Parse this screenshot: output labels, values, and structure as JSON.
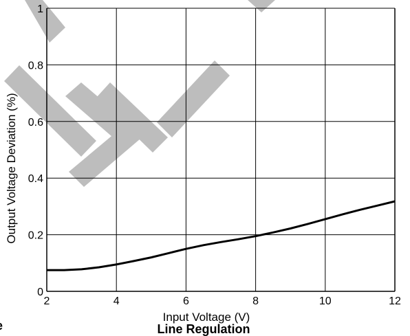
{
  "chart_data": {
    "type": "line",
    "title": "Line Regulation",
    "side_fragment": "e",
    "xlabel": "Input Voltage (V)",
    "ylabel": "Output Voltage Deviation (%)",
    "xlim": [
      2,
      12
    ],
    "ylim": [
      0,
      1
    ],
    "x_ticks": [
      2,
      4,
      6,
      8,
      10,
      12
    ],
    "y_ticks": [
      0,
      0.2,
      0.4,
      0.6,
      0.8,
      1
    ],
    "y_tick_labels": [
      "0",
      "0.2",
      "0.4",
      "0.6",
      "0.8",
      "1"
    ],
    "grid": true,
    "series": [
      {
        "x": [
          2,
          2.5,
          3,
          3.5,
          4,
          4.5,
          5,
          5.5,
          6,
          6.5,
          7,
          7.5,
          8,
          8.5,
          9,
          9.5,
          10,
          10.5,
          11,
          11.5,
          12
        ],
        "y": [
          0.075,
          0.075,
          0.078,
          0.085,
          0.095,
          0.107,
          0.12,
          0.135,
          0.15,
          0.163,
          0.174,
          0.184,
          0.195,
          0.208,
          0.222,
          0.238,
          0.255,
          0.272,
          0.288,
          0.303,
          0.318
        ]
      }
    ],
    "colors": {
      "line": "#000000",
      "grid": "#000000",
      "watermark": "#bdbdbd"
    }
  }
}
